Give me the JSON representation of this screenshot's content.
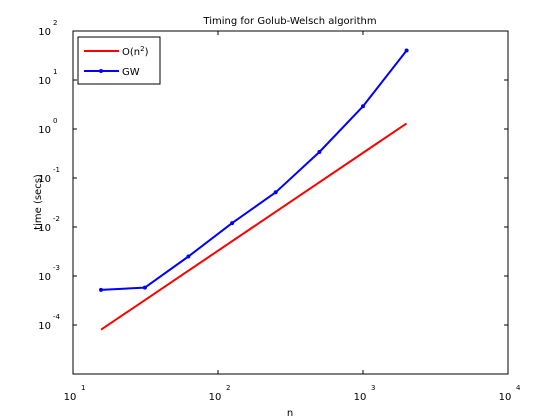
{
  "chart_data": {
    "type": "line",
    "title": "Timing for Golub-Welsch algorithm",
    "xlabel": "n",
    "ylabel": "time (secs)",
    "xscale": "log",
    "yscale": "log",
    "xlim": [
      10,
      10000
    ],
    "ylim": [
      1e-05,
      100
    ],
    "grid": false,
    "legend_position": "top-left",
    "x_ticks": [
      {
        "base": "10",
        "exp": "1"
      },
      {
        "base": "10",
        "exp": "2"
      },
      {
        "base": "10",
        "exp": "3"
      },
      {
        "base": "10",
        "exp": "4"
      }
    ],
    "y_ticks": [
      {
        "base": "10",
        "exp": "-4"
      },
      {
        "base": "10",
        "exp": "-3"
      },
      {
        "base": "10",
        "exp": "-2"
      },
      {
        "base": "10",
        "exp": "-1"
      },
      {
        "base": "10",
        "exp": "0"
      },
      {
        "base": "10",
        "exp": "1"
      },
      {
        "base": "10",
        "exp": "2"
      }
    ],
    "series": [
      {
        "name": "O(n",
        "name_sup": "2",
        "name_tail": ")",
        "color": "#ff0000",
        "marker": "none",
        "x": [
          15.6,
          2000
        ],
        "y": [
          8e-05,
          1.3
        ]
      },
      {
        "name": "GW",
        "color": "#0000ff",
        "marker": "dot",
        "x": [
          15.6,
          31.3,
          62.5,
          125,
          250,
          500,
          1000,
          2000
        ],
        "y": [
          0.00052,
          0.00058,
          0.0025,
          0.012,
          0.051,
          0.34,
          2.9,
          40
        ]
      }
    ]
  }
}
